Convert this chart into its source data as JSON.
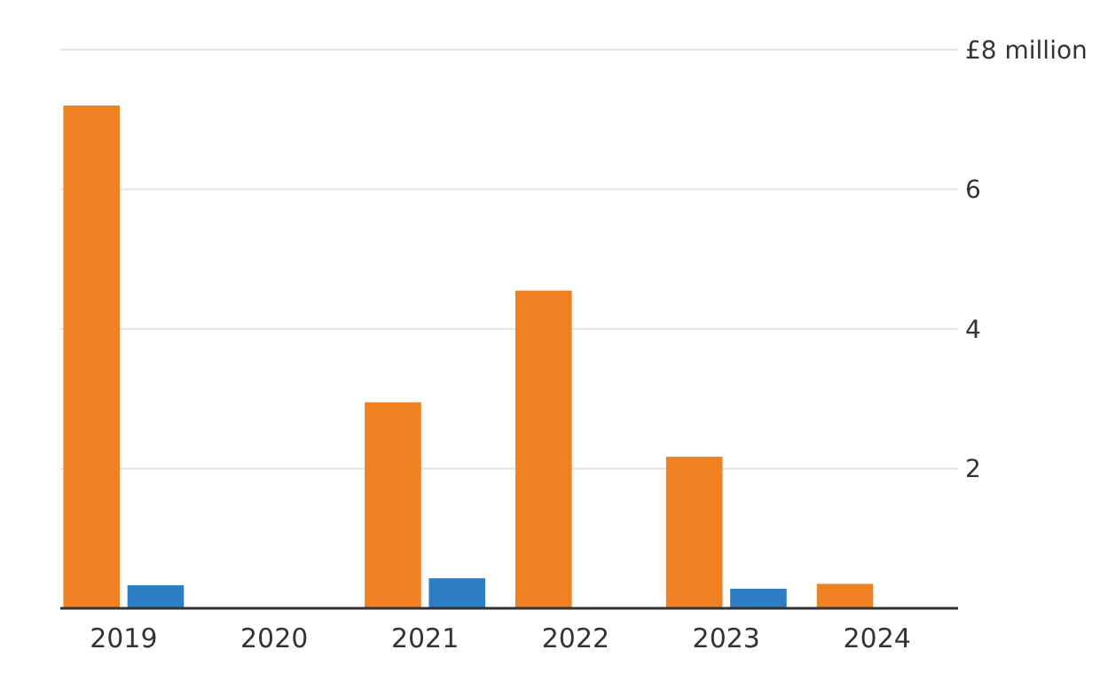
{
  "chart_data": {
    "type": "bar",
    "categories": [
      "2019",
      "2020",
      "2021",
      "2022",
      "2023",
      "2024"
    ],
    "series": [
      {
        "color": "#f08122",
        "values": [
          7.2,
          null,
          2.95,
          4.55,
          2.17,
          0.35
        ]
      },
      {
        "color": "#2d7ec3",
        "values": [
          0.33,
          null,
          0.43,
          null,
          0.28,
          null
        ]
      }
    ],
    "ylim": [
      0,
      8
    ],
    "yticks": [
      2,
      4,
      6,
      {
        "value": 8,
        "label": "£8 million"
      }
    ],
    "grid": "y"
  }
}
